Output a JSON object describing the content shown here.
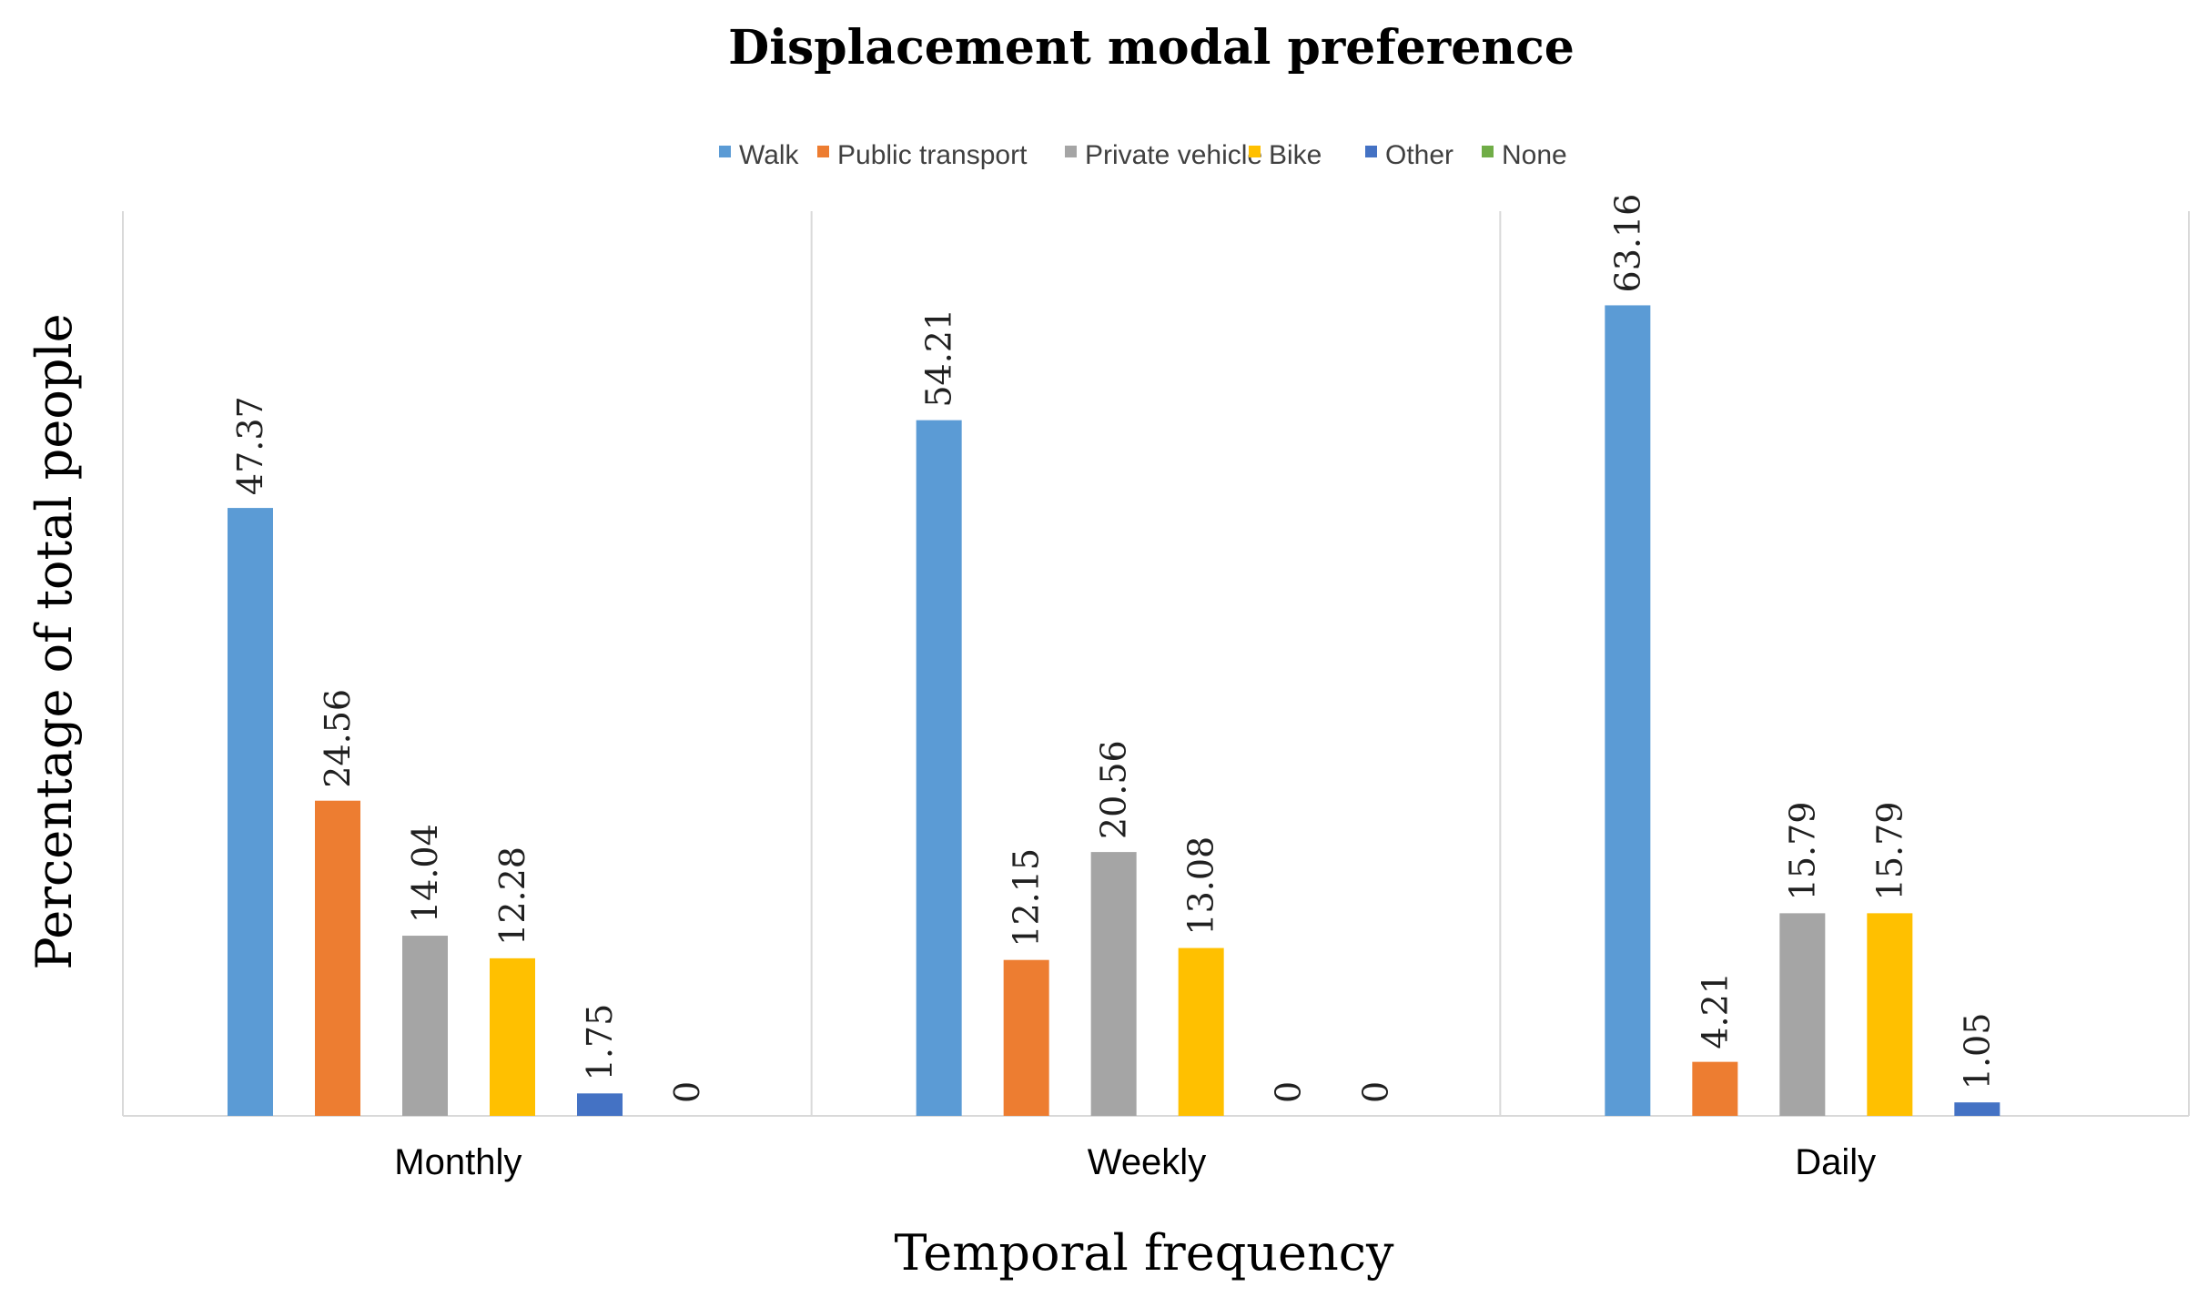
{
  "chart_data": {
    "type": "bar",
    "title": "Displacement modal preference",
    "xlabel": "Temporal frequency",
    "ylabel": "Percentage of total people",
    "categories": [
      "Monthly",
      "Weekly",
      "Daily"
    ],
    "ylim": [
      0,
      70
    ],
    "grid": false,
    "legend_position": "top-center",
    "series": [
      {
        "name": "Walk",
        "color": "#5B9BD5",
        "values": [
          47.37,
          54.21,
          63.16
        ],
        "labels": [
          "47.37",
          "54.21",
          "63.16"
        ]
      },
      {
        "name": "Public transport",
        "color": "#ED7D31",
        "values": [
          24.56,
          12.15,
          4.21
        ],
        "labels": [
          "24.56",
          "12.15",
          "4.21"
        ]
      },
      {
        "name": "Private vehicle",
        "color": "#A5A5A5",
        "values": [
          14.04,
          20.56,
          15.79
        ],
        "labels": [
          "14.04",
          "20.56",
          "15.79"
        ]
      },
      {
        "name": "Bike",
        "color": "#FFC000",
        "values": [
          12.28,
          13.08,
          15.79
        ],
        "labels": [
          "12.28",
          "13.08",
          "15.79"
        ]
      },
      {
        "name": "Other",
        "color": "#4472C4",
        "values": [
          1.75,
          0,
          1.05
        ],
        "labels": [
          "1.75",
          "0",
          "1.05"
        ]
      },
      {
        "name": "None",
        "color": "#70AD47",
        "values": [
          0,
          0,
          null
        ],
        "labels": [
          "0",
          "0",
          null
        ]
      }
    ]
  }
}
